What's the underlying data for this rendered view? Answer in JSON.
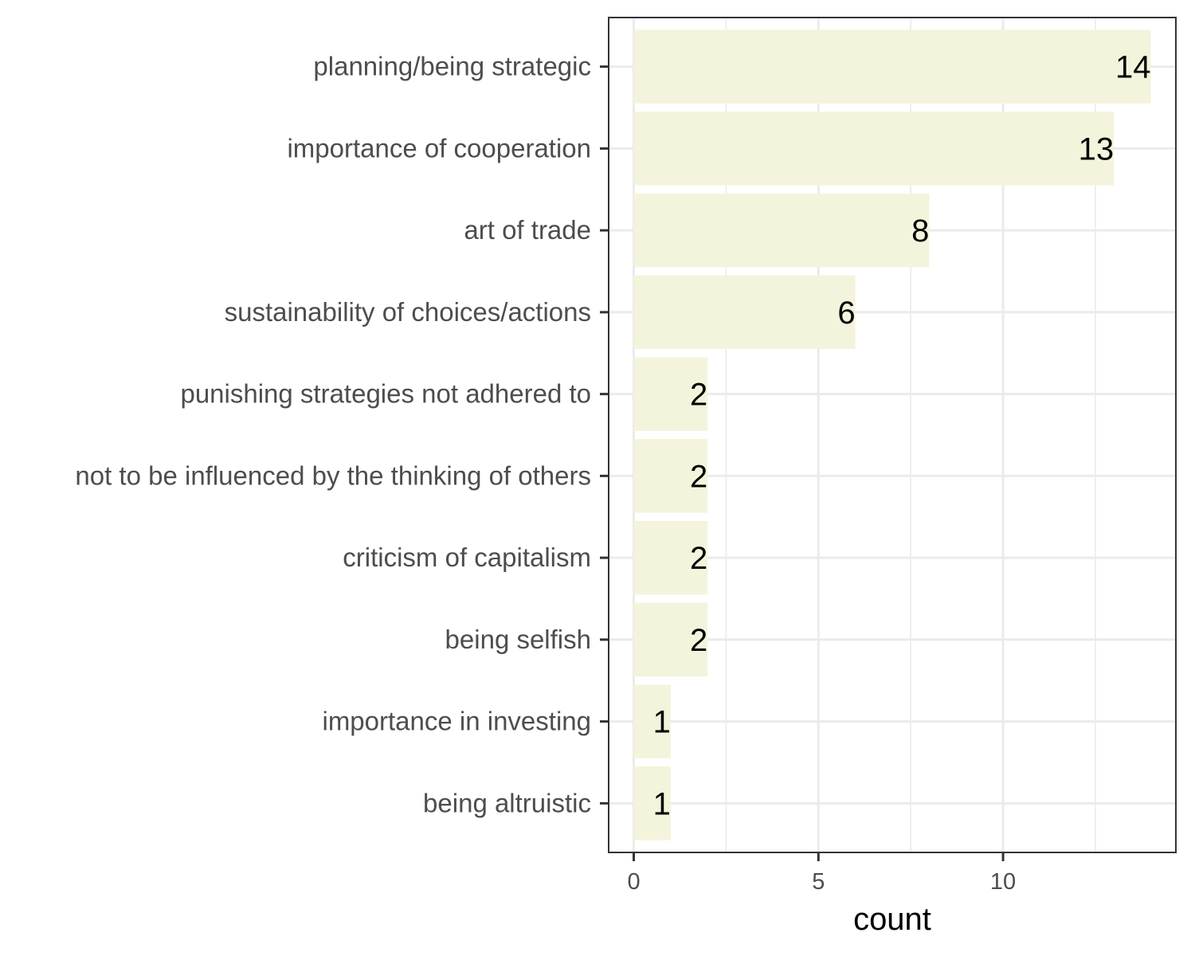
{
  "chart_data": {
    "type": "bar",
    "orientation": "horizontal",
    "categories": [
      "planning/being strategic",
      "importance of cooperation",
      "art of trade",
      "sustainability of choices/actions",
      "punishing strategies not adhered to",
      "not to be influenced by the thinking of others",
      "criticism of capitalism",
      "being selfish",
      "importance in investing",
      "being altruistic"
    ],
    "values": [
      14,
      13,
      8,
      6,
      2,
      2,
      2,
      2,
      1,
      1
    ],
    "data_labels": [
      "14",
      "13",
      "8",
      "6",
      "2",
      "2",
      "2",
      "2",
      "1",
      "1"
    ],
    "xlabel": "count",
    "ylabel": "",
    "xlim": [
      -0.68,
      14.68
    ],
    "x_ticks": [
      0,
      5,
      10
    ],
    "x_tick_labels": [
      "0",
      "5",
      "10"
    ],
    "grid": true,
    "legend": "none",
    "colors": {
      "bar_fill": "#f4f4dc",
      "grid": "#ebebeb",
      "panel_border": "#333333",
      "tick_text": "#4d4d4d",
      "label_text": "#000000"
    }
  }
}
